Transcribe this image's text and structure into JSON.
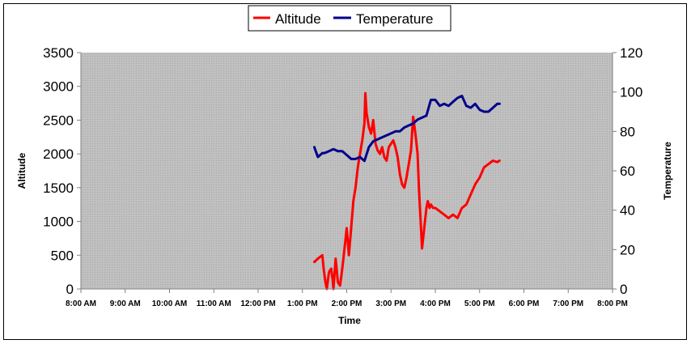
{
  "chart_data": {
    "type": "line",
    "xlabel": "Time",
    "ylabel_left": "Altitude",
    "ylabel_right": "Temperature",
    "x_ticks": [
      "8:00 AM",
      "9:00 AM",
      "10:00 AM",
      "11:00 AM",
      "12:00 PM",
      "1:00 PM",
      "2:00 PM",
      "3:00 PM",
      "4:00 PM",
      "5:00 PM",
      "6:00 PM",
      "7:00 PM",
      "8:00 PM"
    ],
    "y_left_ticks": [
      "0",
      "500",
      "1000",
      "1500",
      "2000",
      "2500",
      "3000",
      "3500"
    ],
    "y_right_ticks": [
      "0",
      "20",
      "40",
      "60",
      "80",
      "100",
      "120"
    ],
    "xlim_hours": [
      8,
      20
    ],
    "ylim_left": [
      0,
      3500
    ],
    "ylim_right": [
      0,
      120
    ],
    "legend_position": "top-center",
    "series": [
      {
        "name": "Altitude",
        "axis": "left",
        "color": "#ff0000",
        "x_hours": [
          13.27,
          13.35,
          13.45,
          13.48,
          13.52,
          13.55,
          13.6,
          13.65,
          13.68,
          13.7,
          13.75,
          13.8,
          13.85,
          13.9,
          13.95,
          14.0,
          14.05,
          14.1,
          14.15,
          14.2,
          14.25,
          14.3,
          14.35,
          14.4,
          14.42,
          14.45,
          14.5,
          14.55,
          14.6,
          14.65,
          14.7,
          14.75,
          14.8,
          14.85,
          14.9,
          14.95,
          15.0,
          15.05,
          15.1,
          15.15,
          15.2,
          15.25,
          15.3,
          15.35,
          15.4,
          15.45,
          15.5,
          15.55,
          15.6,
          15.63,
          15.67,
          15.7,
          15.75,
          15.8,
          15.83,
          15.87,
          15.9,
          15.95,
          16.0,
          16.1,
          16.2,
          16.3,
          16.4,
          16.5,
          16.6,
          16.7,
          16.8,
          16.9,
          17.0,
          17.1,
          17.2,
          17.3,
          17.4,
          17.45
        ],
        "values": [
          400,
          450,
          500,
          300,
          100,
          0,
          250,
          300,
          150,
          0,
          450,
          100,
          50,
          300,
          600,
          900,
          500,
          900,
          1300,
          1500,
          1800,
          2000,
          2200,
          2450,
          2900,
          2600,
          2400,
          2300,
          2500,
          2150,
          2050,
          2000,
          2100,
          1950,
          1900,
          2100,
          2150,
          2200,
          2100,
          1950,
          1700,
          1550,
          1500,
          1650,
          1850,
          2050,
          2550,
          2300,
          2000,
          1500,
          1000,
          600,
          900,
          1200,
          1300,
          1200,
          1250,
          1200,
          1200,
          1150,
          1100,
          1050,
          1100,
          1050,
          1200,
          1250,
          1400,
          1550,
          1650,
          1800,
          1850,
          1900,
          1880,
          1900
        ]
      },
      {
        "name": "Temperature",
        "axis": "right",
        "color": "#00008b",
        "x_hours": [
          13.27,
          13.3,
          13.35,
          13.4,
          13.45,
          13.5,
          13.6,
          13.7,
          13.8,
          13.9,
          14.0,
          14.1,
          14.2,
          14.3,
          14.4,
          14.5,
          14.6,
          14.7,
          14.8,
          14.9,
          15.0,
          15.1,
          15.2,
          15.3,
          15.4,
          15.5,
          15.6,
          15.7,
          15.8,
          15.9,
          16.0,
          16.1,
          16.2,
          16.3,
          16.4,
          16.5,
          16.6,
          16.7,
          16.8,
          16.9,
          17.0,
          17.1,
          17.2,
          17.3,
          17.4,
          17.45
        ],
        "values": [
          72,
          70,
          67,
          68,
          69,
          69,
          70,
          71,
          70,
          70,
          68,
          66,
          66,
          67,
          65,
          72,
          75,
          76,
          77,
          78,
          79,
          80,
          80,
          82,
          83,
          84,
          86,
          87,
          88,
          96,
          96,
          93,
          94,
          93,
          95,
          97,
          98,
          93,
          92,
          94,
          91,
          90,
          90,
          92,
          94,
          94
        ]
      }
    ]
  }
}
